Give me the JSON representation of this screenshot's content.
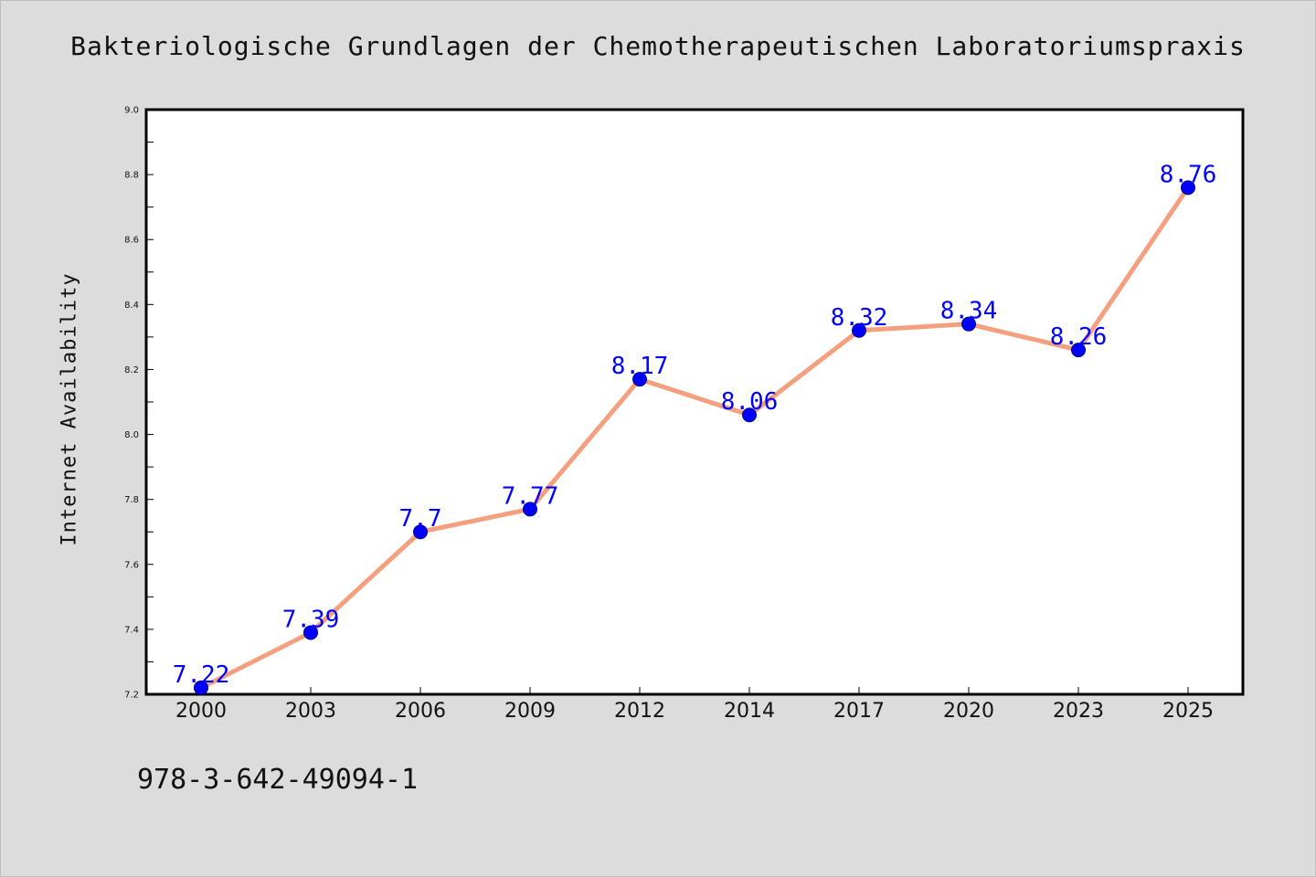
{
  "page": {
    "title": "Bakteriologische Grundlagen der Chemotherapeutischen Laboratoriumspraxis",
    "isbn": "978-3-642-49094-1"
  },
  "colors": {
    "background": "#dcdcdc",
    "plot_background": "#ffffff",
    "line": "#f4a07e",
    "marker": "#0000ff",
    "data_label": "#0000ff"
  },
  "chart_data": {
    "type": "line",
    "title": "Bakteriologische Grundlagen der Chemotherapeutischen Laboratoriumspraxis",
    "xlabel": "",
    "ylabel": "Internet Availability",
    "categories": [
      "2000",
      "2003",
      "2006",
      "2009",
      "2012",
      "2014",
      "2017",
      "2020",
      "2023",
      "2025"
    ],
    "series": [
      {
        "values": [
          7.22,
          7.39,
          7.7,
          7.77,
          8.17,
          8.06,
          8.32,
          8.34,
          8.26,
          8.76
        ],
        "labels": [
          "7.22",
          "7.39",
          "7.7",
          "7.77",
          "8.17",
          "8.06",
          "8.32",
          "8.34",
          "8.26",
          "8.76"
        ]
      }
    ],
    "ylim": [
      7.2,
      9.0
    ],
    "yticks": [
      "7.2",
      "7.4",
      "7.6",
      "7.8",
      "8.0",
      "8.2",
      "8.4",
      "8.6",
      "8.8",
      "9.0"
    ],
    "grid": false,
    "legend": "none"
  }
}
